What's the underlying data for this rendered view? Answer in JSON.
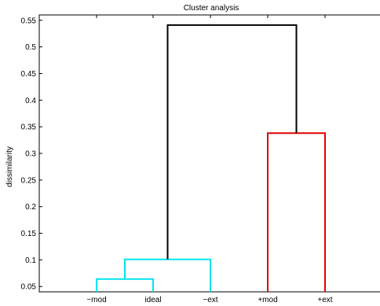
{
  "chart_data": {
    "type": "dendrogram",
    "title": "Cluster analysis",
    "xlabel": "",
    "ylabel": "dissimilarity",
    "ylim": [
      0.04,
      0.56
    ],
    "yticks": [
      "0.05",
      "0.1",
      "0.15",
      "0.2",
      "0.25",
      "0.3",
      "0.35",
      "0.4",
      "0.45",
      "0.5",
      "0.55"
    ],
    "leaves": [
      "−mod",
      "ideal",
      "−ext",
      "+mod",
      "+ext"
    ],
    "merges": [
      {
        "left": "−mod",
        "right": "ideal",
        "height": 0.064,
        "color": "#00e5ee"
      },
      {
        "left": "−mod/ideal",
        "right": "−ext",
        "height": 0.101,
        "color": "#00e5ee"
      },
      {
        "left": "+mod",
        "right": "+ext",
        "height": 0.338,
        "color": "#e00000"
      },
      {
        "left": "cyan cluster",
        "right": "red cluster",
        "height": 0.541,
        "color": "#000000"
      }
    ],
    "grid": false,
    "legend": "none"
  }
}
